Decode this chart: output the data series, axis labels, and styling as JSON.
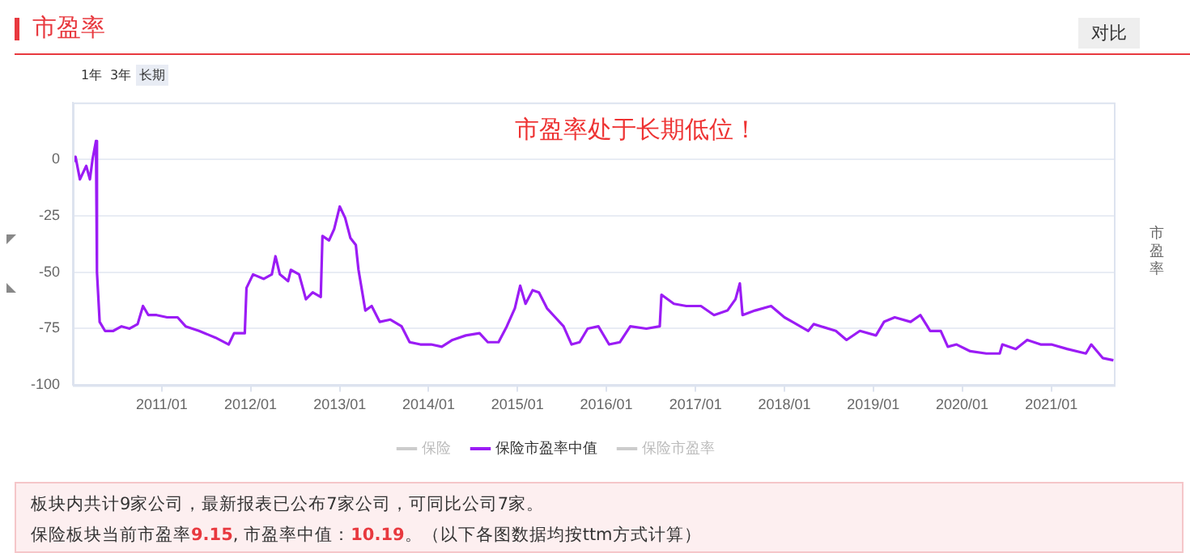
{
  "chart_data": {
    "type": "line",
    "title": "市盈率",
    "ylabel": "市盈率",
    "annotations": [
      "对比",
      "1年",
      "3年",
      "长期",
      "市盈率处于长期低位！",
      "板块内共计9家公司，最新报表已公布7家公司，可同比公司7家。",
      "保险板块当前市盈率9.15, 市盈率中值：10.19。（以下各图数据均按ttm方式计算）"
    ],
    "xlim": [
      "2010-01-01",
      "2021-09-15"
    ],
    "xticks": [
      {
        "value": "2011-01-01",
        "label": "2011/01"
      },
      {
        "value": "2012-01-01",
        "label": "2012/01"
      },
      {
        "value": "2013-01-01",
        "label": "2013/01"
      },
      {
        "value": "2014-01-01",
        "label": "2014/01"
      },
      {
        "value": "2015-01-01",
        "label": "2015/01"
      },
      {
        "value": "2016-01-01",
        "label": "2016/01"
      },
      {
        "value": "2017-01-01",
        "label": "2017/01"
      },
      {
        "value": "2018-01-01",
        "label": "2018/01"
      },
      {
        "value": "2019-01-01",
        "label": "2019/01"
      },
      {
        "value": "2020-01-01",
        "label": "2020/01"
      },
      {
        "value": "2021-01-01",
        "label": "2021/01"
      }
    ],
    "ylim": [
      -100,
      25
    ],
    "yticks": [
      -100,
      -75,
      -50,
      -25,
      0
    ],
    "grid": "y",
    "legend": "bottom",
    "marker": "none",
    "line_style": "solid",
    "series": [
      {
        "name": "保险",
        "color": "#cccccc"
      },
      {
        "name": "保险市盈率中值",
        "color": "#9b1cf5",
        "x": [
          "2010-01-01",
          "2010-01-12",
          "2010-01-30",
          "2010-02-25",
          "2010-03-12",
          "2010-03-23",
          "2010-04-06",
          "2010-04-10",
          "2010-04-21",
          "2010-05-13",
          "2010-06-16",
          "2010-07-20",
          "2010-08-22",
          "2010-09-24",
          "2010-10-16",
          "2010-11-07",
          "2010-12-11",
          "2011-01-23",
          "2011-03-07",
          "2011-04-09",
          "2011-06-03",
          "2011-08-10",
          "2011-10-03",
          "2011-10-25",
          "2011-12-08",
          "2011-12-15",
          "2012-01-11",
          "2012-02-24",
          "2012-03-28",
          "2012-04-12",
          "2012-04-30",
          "2012-06-03",
          "2012-06-14",
          "2012-07-18",
          "2012-08-15",
          "2012-09-12",
          "2012-10-15",
          "2012-10-22",
          "2012-11-18",
          "2012-12-09",
          "2013-01-01",
          "2013-01-23",
          "2013-02-14",
          "2013-03-08",
          "2013-03-19",
          "2013-04-16",
          "2013-05-12",
          "2013-06-14",
          "2013-07-28",
          "2013-09-12",
          "2013-10-15",
          "2013-11-28",
          "2014-01-11",
          "2014-02-24",
          "2014-04-09",
          "2014-06-03",
          "2014-07-29",
          "2014-09-01",
          "2014-10-15",
          "2014-11-18",
          "2014-12-21",
          "2015-01-12",
          "2015-02-03",
          "2015-03-04",
          "2015-03-30",
          "2015-05-02",
          "2015-06-05",
          "2015-07-09",
          "2015-08-11",
          "2015-09-13",
          "2015-10-16",
          "2015-11-29",
          "2016-01-12",
          "2016-02-25",
          "2016-04-08",
          "2016-06-13",
          "2016-08-07",
          "2016-08-14",
          "2016-10-04",
          "2016-11-24",
          "2017-01-23",
          "2017-03-18",
          "2017-05-12",
          "2017-06-14",
          "2017-07-02",
          "2017-07-13",
          "2017-09-02",
          "2017-11-07",
          "2018-01-01",
          "2018-02-03",
          "2018-04-09",
          "2018-05-01",
          "2018-07-31",
          "2018-09-13",
          "2018-11-07",
          "2019-01-12",
          "2019-02-14",
          "2019-03-30",
          "2019-06-03",
          "2019-07-13",
          "2019-08-11",
          "2019-08-22",
          "2019-10-05",
          "2019-11-03",
          "2019-12-09",
          "2020-02-03",
          "2020-04-09",
          "2020-06-03",
          "2020-06-14",
          "2020-08-08",
          "2020-09-24",
          "2020-11-18",
          "2021-01-01",
          "2021-03-07",
          "2021-05-23",
          "2021-06-14",
          "2021-07-31",
          "2021-09-13"
        ],
        "values": [
          -2,
          1,
          -9,
          -3,
          -9,
          0,
          8,
          -50,
          -72,
          -76,
          -76,
          -74,
          -75,
          -73,
          -65,
          -69,
          -69,
          -70,
          -70,
          -74,
          -76,
          -79,
          -82,
          -77,
          -77,
          -57,
          -51,
          -53,
          -51,
          -43,
          -51,
          -54,
          -49,
          -51,
          -62,
          -59,
          -61,
          -34,
          -36,
          -31,
          -21,
          -26,
          -35,
          -38,
          -49,
          -67,
          -65,
          -72,
          -71,
          -74,
          -81,
          -82,
          -82,
          -83,
          -80,
          -78,
          -77,
          -81,
          -81,
          -74,
          -66,
          -56,
          -64,
          -58,
          -59,
          -66,
          -70,
          -74,
          -82,
          -81,
          -75,
          -74,
          -82,
          -81,
          -74,
          -75,
          -74,
          -60,
          -64,
          -65,
          -65,
          -69,
          -67,
          -62,
          -55,
          -69,
          -67,
          -65,
          -70,
          -72,
          -76,
          -73,
          -76,
          -80,
          -76,
          -78,
          -72,
          -70,
          -72,
          -69,
          -74,
          -76,
          -76,
          -83,
          -82,
          -85,
          -86,
          -86,
          -82,
          -84,
          -80,
          -82,
          -82,
          -84,
          -86,
          -82,
          -88,
          -89
        ]
      },
      {
        "name": "保险市盈率",
        "color": "#cccccc"
      }
    ]
  }
}
